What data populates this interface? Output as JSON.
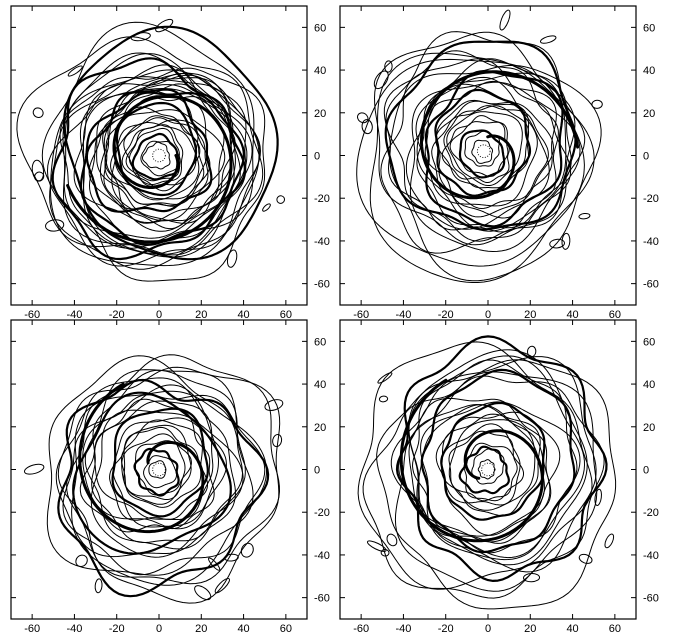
{
  "chart_data": [
    {
      "type": "contour",
      "xlim": [
        -70,
        70
      ],
      "ylim": [
        -70,
        70
      ],
      "xticks": [
        -60,
        -40,
        -20,
        0,
        20,
        40,
        60
      ],
      "yticks": [
        -60,
        -40,
        -20,
        0,
        20,
        40,
        60
      ],
      "ytick_side": "right",
      "xtick_labels_shown": true,
      "ytick_labels_shown": true,
      "spiral_arm_turns": 1.45,
      "inner_radius": 6,
      "outer_radius": 52,
      "contour_levels": 34,
      "eye_center": [
        0,
        0
      ]
    },
    {
      "type": "contour",
      "xlim": [
        -70,
        70
      ],
      "ylim": [
        -70,
        70
      ],
      "xticks": [
        -60,
        -40,
        -20,
        0,
        20,
        40,
        60
      ],
      "yticks": [
        -60,
        -40,
        -20,
        0,
        20,
        40,
        60
      ],
      "ytick_side": "right",
      "xtick_labels_shown": true,
      "ytick_labels_shown": true,
      "spiral_arm_turns": 1.2,
      "inner_radius": 5,
      "outer_radius": 52,
      "contour_levels": 26,
      "eye_center": [
        -2,
        2
      ]
    },
    {
      "type": "contour",
      "xlim": [
        -70,
        70
      ],
      "ylim": [
        -70,
        70
      ],
      "xticks": [
        -60,
        -40,
        -20,
        0,
        20,
        40,
        60
      ],
      "yticks": [
        -60,
        -40,
        -20,
        0,
        20,
        40,
        60
      ],
      "ytick_side": "right",
      "xtick_labels_shown": true,
      "ytick_labels_shown": true,
      "spiral_arm_turns": 1.1,
      "inner_radius": 4,
      "outer_radius": 52,
      "contour_levels": 24,
      "eye_center": [
        0,
        0
      ]
    },
    {
      "type": "contour",
      "xlim": [
        -70,
        70
      ],
      "ylim": [
        -70,
        70
      ],
      "xticks": [
        -60,
        -40,
        -20,
        0,
        20,
        40,
        60
      ],
      "yticks": [
        -60,
        -40,
        -20,
        0,
        20,
        40,
        60
      ],
      "ytick_side": "right",
      "xtick_labels_shown": true,
      "ytick_labels_shown": true,
      "spiral_arm_turns": 1.3,
      "inner_radius": 4,
      "outer_radius": 56,
      "contour_levels": 24,
      "eye_center": [
        0,
        0
      ]
    }
  ]
}
